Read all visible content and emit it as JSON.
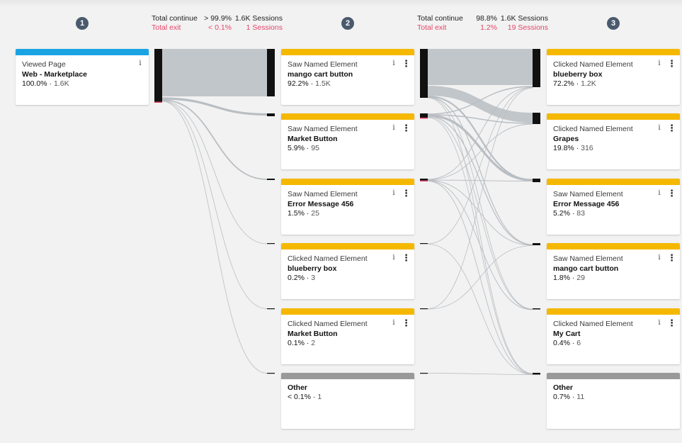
{
  "steps": [
    "1",
    "2",
    "3"
  ],
  "transitions": [
    {
      "continue_label": "Total continue",
      "continue_pct": "> 99.9%",
      "continue_sessions": "1.6K Sessions",
      "exit_label": "Total exit",
      "exit_pct": "< 0.1%",
      "exit_sessions": "1 Sessions"
    },
    {
      "continue_label": "Total continue",
      "continue_pct": "98.8%",
      "continue_sessions": "1.6K Sessions",
      "exit_label": "Total exit",
      "exit_pct": "1.2%",
      "exit_sessions": "19 Sessions"
    }
  ],
  "col1": [
    {
      "type": "Viewed Page",
      "name": "Web - Marketplace",
      "pct": "100.0%",
      "count": "1.6K",
      "color": "#1aa3e3"
    }
  ],
  "col2": [
    {
      "type": "Saw Named Element",
      "name": "mango cart button",
      "pct": "92.2%",
      "count": "1.5K"
    },
    {
      "type": "Saw Named Element",
      "name": "Market Button",
      "pct": "5.9%",
      "count": "95"
    },
    {
      "type": "Saw Named Element",
      "name": "Error Message 456",
      "pct": "1.5%",
      "count": "25"
    },
    {
      "type": "Clicked Named Element",
      "name": "blueberry box",
      "pct": "0.2%",
      "count": "3"
    },
    {
      "type": "Clicked Named Element",
      "name": "Market Button",
      "pct": "0.1%",
      "count": "2"
    },
    {
      "name": "Other",
      "pct": "< 0.1%",
      "count": "1"
    }
  ],
  "col3": [
    {
      "type": "Clicked Named Element",
      "name": "blueberry box",
      "pct": "72.2%",
      "count": "1.2K"
    },
    {
      "type": "Clicked Named Element",
      "name": "Grapes",
      "pct": "19.8%",
      "count": "316"
    },
    {
      "type": "Saw Named Element",
      "name": "Error Message 456",
      "pct": "5.2%",
      "count": "83"
    },
    {
      "type": "Saw Named Element",
      "name": "mango cart button",
      "pct": "1.8%",
      "count": "29"
    },
    {
      "type": "Clicked Named Element",
      "name": "My Cart",
      "pct": "0.4%",
      "count": "6"
    },
    {
      "name": "Other",
      "pct": "0.7%",
      "count": "11"
    }
  ],
  "colors": {
    "page": "#1aa3e3",
    "element": "#f5b800",
    "other": "#999999",
    "exit": "#e5466b",
    "flow": "#b9bec3"
  },
  "icons": {
    "info": "info-icon",
    "more": "more-vertical-icon"
  }
}
